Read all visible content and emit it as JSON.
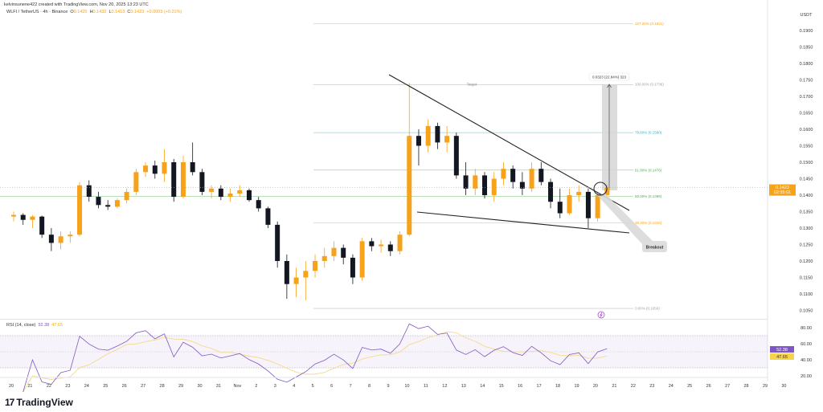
{
  "header": {
    "credit": "kelvinsunene422 created with TradingView.com, Nov 20, 2025 13:23 UTC",
    "symbol": "WLFI / TetherUS · 4h · Binance",
    "o_label": "O",
    "o": "0.1420",
    "h_label": "H",
    "h": "0.1432",
    "l_label": "L",
    "l": "0.1413",
    "c_label": "C",
    "c": "0.1423",
    "change": "+0.0003 (+0.21%)"
  },
  "price_axis": {
    "currency": "USDT",
    "current_price": "0.1423",
    "countdown": "02:35:01"
  },
  "annotations": {
    "measure": "0.0323 (22.84%) 323",
    "target": "Target",
    "breakout": "Breakout",
    "fib_levels": [
      {
        "label": "127.20% (0.1921)",
        "price": 0.1921,
        "color": "#f7a21b"
      },
      {
        "label": "100.00% (0.1736)",
        "price": 0.1736,
        "color": "#9e9e9e"
      },
      {
        "label": "78.60% (0.1590)",
        "price": 0.159,
        "color": "#26b5c8"
      },
      {
        "label": "61.80% (0.1476)",
        "price": 0.1476,
        "color": "#4caf50"
      },
      {
        "label": "50.00% (0.1396)",
        "price": 0.1396,
        "color": "#4caf50"
      },
      {
        "label": "38.20% (0.1316)",
        "price": 0.1316,
        "color": "#f7a21b"
      },
      {
        "label": "0.00% (0.1056)",
        "price": 0.1056,
        "color": "#9e9e9e"
      }
    ]
  },
  "rsi": {
    "label": "RSI (14, close)",
    "value": "52.38",
    "ma_value": "47.65",
    "ticks": [
      "80.00",
      "60.00",
      "40.00",
      "20.00"
    ]
  },
  "brand": "TradingView",
  "colors": {
    "up": "#f7a21b",
    "down": "#131722",
    "rsi": "#7e57c2",
    "rsi_ma": "#f5d98a"
  },
  "chart_data": {
    "type": "candlestick",
    "interval_note": "4h",
    "ylim": [
      0.103,
      0.196
    ],
    "y_ticks": [
      "0.1900",
      "0.1850",
      "0.1800",
      "0.1750",
      "0.1700",
      "0.1650",
      "0.1600",
      "0.1550",
      "0.1500",
      "0.1450",
      "0.1400",
      "0.1350",
      "0.1300",
      "0.1250",
      "0.1200",
      "0.1150",
      "0.1100",
      "0.1050"
    ],
    "x_ticks": [
      "20",
      "21",
      "22",
      "23",
      "24",
      "25",
      "26",
      "27",
      "28",
      "29",
      "30",
      "31",
      "Nov",
      "2",
      "3",
      "4",
      "5",
      "6",
      "7",
      "8",
      "9",
      "10",
      "11",
      "12",
      "13",
      "14",
      "15",
      "16",
      "17",
      "18",
      "19",
      "20",
      "21",
      "22",
      "23",
      "24",
      "25",
      "26",
      "27",
      "28",
      "29",
      "30"
    ],
    "ohlc": [
      [
        0.1335,
        0.135,
        0.132,
        0.134
      ],
      [
        0.134,
        0.1345,
        0.131,
        0.1325
      ],
      [
        0.1325,
        0.134,
        0.13,
        0.1335
      ],
      [
        0.1335,
        0.1338,
        0.127,
        0.128
      ],
      [
        0.128,
        0.13,
        0.123,
        0.1255
      ],
      [
        0.1255,
        0.129,
        0.1235,
        0.1275
      ],
      [
        0.1275,
        0.129,
        0.1255,
        0.128
      ],
      [
        0.128,
        0.144,
        0.1275,
        0.143
      ],
      [
        0.143,
        0.1445,
        0.138,
        0.1395
      ],
      [
        0.1395,
        0.141,
        0.136,
        0.137
      ],
      [
        0.137,
        0.1385,
        0.1355,
        0.1365
      ],
      [
        0.1365,
        0.139,
        0.136,
        0.1385
      ],
      [
        0.1385,
        0.142,
        0.1375,
        0.141
      ],
      [
        0.141,
        0.148,
        0.14,
        0.147
      ],
      [
        0.147,
        0.15,
        0.1455,
        0.149
      ],
      [
        0.149,
        0.1505,
        0.145,
        0.1465
      ],
      [
        0.1465,
        0.154,
        0.144,
        0.15
      ],
      [
        0.15,
        0.151,
        0.138,
        0.1395
      ],
      [
        0.1395,
        0.152,
        0.139,
        0.15
      ],
      [
        0.15,
        0.156,
        0.146,
        0.147
      ],
      [
        0.147,
        0.148,
        0.14,
        0.141
      ],
      [
        0.141,
        0.143,
        0.139,
        0.142
      ],
      [
        0.142,
        0.143,
        0.1385,
        0.1395
      ],
      [
        0.1395,
        0.142,
        0.138,
        0.1405
      ],
      [
        0.1405,
        0.143,
        0.1395,
        0.1415
      ],
      [
        0.1415,
        0.142,
        0.138,
        0.1385
      ],
      [
        0.1385,
        0.1395,
        0.135,
        0.136
      ],
      [
        0.136,
        0.1365,
        0.13,
        0.131
      ],
      [
        0.131,
        0.132,
        0.118,
        0.12
      ],
      [
        0.12,
        0.122,
        0.1085,
        0.113
      ],
      [
        0.113,
        0.118,
        0.109,
        0.115
      ],
      [
        0.115,
        0.12,
        0.108,
        0.117
      ],
      [
        0.117,
        0.122,
        0.115,
        0.12
      ],
      [
        0.12,
        0.124,
        0.118,
        0.1215
      ],
      [
        0.1215,
        0.126,
        0.12,
        0.124
      ],
      [
        0.124,
        0.125,
        0.119,
        0.121
      ],
      [
        0.121,
        0.122,
        0.113,
        0.115
      ],
      [
        0.115,
        0.127,
        0.114,
        0.126
      ],
      [
        0.126,
        0.127,
        0.123,
        0.1245
      ],
      [
        0.1245,
        0.1265,
        0.1225,
        0.125
      ],
      [
        0.125,
        0.126,
        0.1215,
        0.123
      ],
      [
        0.123,
        0.129,
        0.122,
        0.128
      ],
      [
        0.128,
        0.174,
        0.1275,
        0.158
      ],
      [
        0.158,
        0.16,
        0.149,
        0.155
      ],
      [
        0.155,
        0.163,
        0.153,
        0.161
      ],
      [
        0.161,
        0.162,
        0.154,
        0.156
      ],
      [
        0.156,
        0.161,
        0.153,
        0.158
      ],
      [
        0.158,
        0.159,
        0.145,
        0.146
      ],
      [
        0.146,
        0.15,
        0.14,
        0.142
      ],
      [
        0.142,
        0.148,
        0.14,
        0.146
      ],
      [
        0.146,
        0.147,
        0.139,
        0.14
      ],
      [
        0.14,
        0.147,
        0.138,
        0.145
      ],
      [
        0.145,
        0.15,
        0.143,
        0.148
      ],
      [
        0.148,
        0.149,
        0.142,
        0.144
      ],
      [
        0.144,
        0.147,
        0.14,
        0.142
      ],
      [
        0.142,
        0.15,
        0.141,
        0.148
      ],
      [
        0.148,
        0.15,
        0.143,
        0.144
      ],
      [
        0.144,
        0.145,
        0.136,
        0.138
      ],
      [
        0.138,
        0.142,
        0.133,
        0.1345
      ],
      [
        0.1345,
        0.142,
        0.134,
        0.14
      ],
      [
        0.14,
        0.143,
        0.138,
        0.141
      ],
      [
        0.141,
        0.142,
        0.13,
        0.133
      ],
      [
        0.133,
        0.141,
        0.132,
        0.14
      ],
      [
        0.14,
        0.1432,
        0.1395,
        0.1423
      ]
    ]
  }
}
